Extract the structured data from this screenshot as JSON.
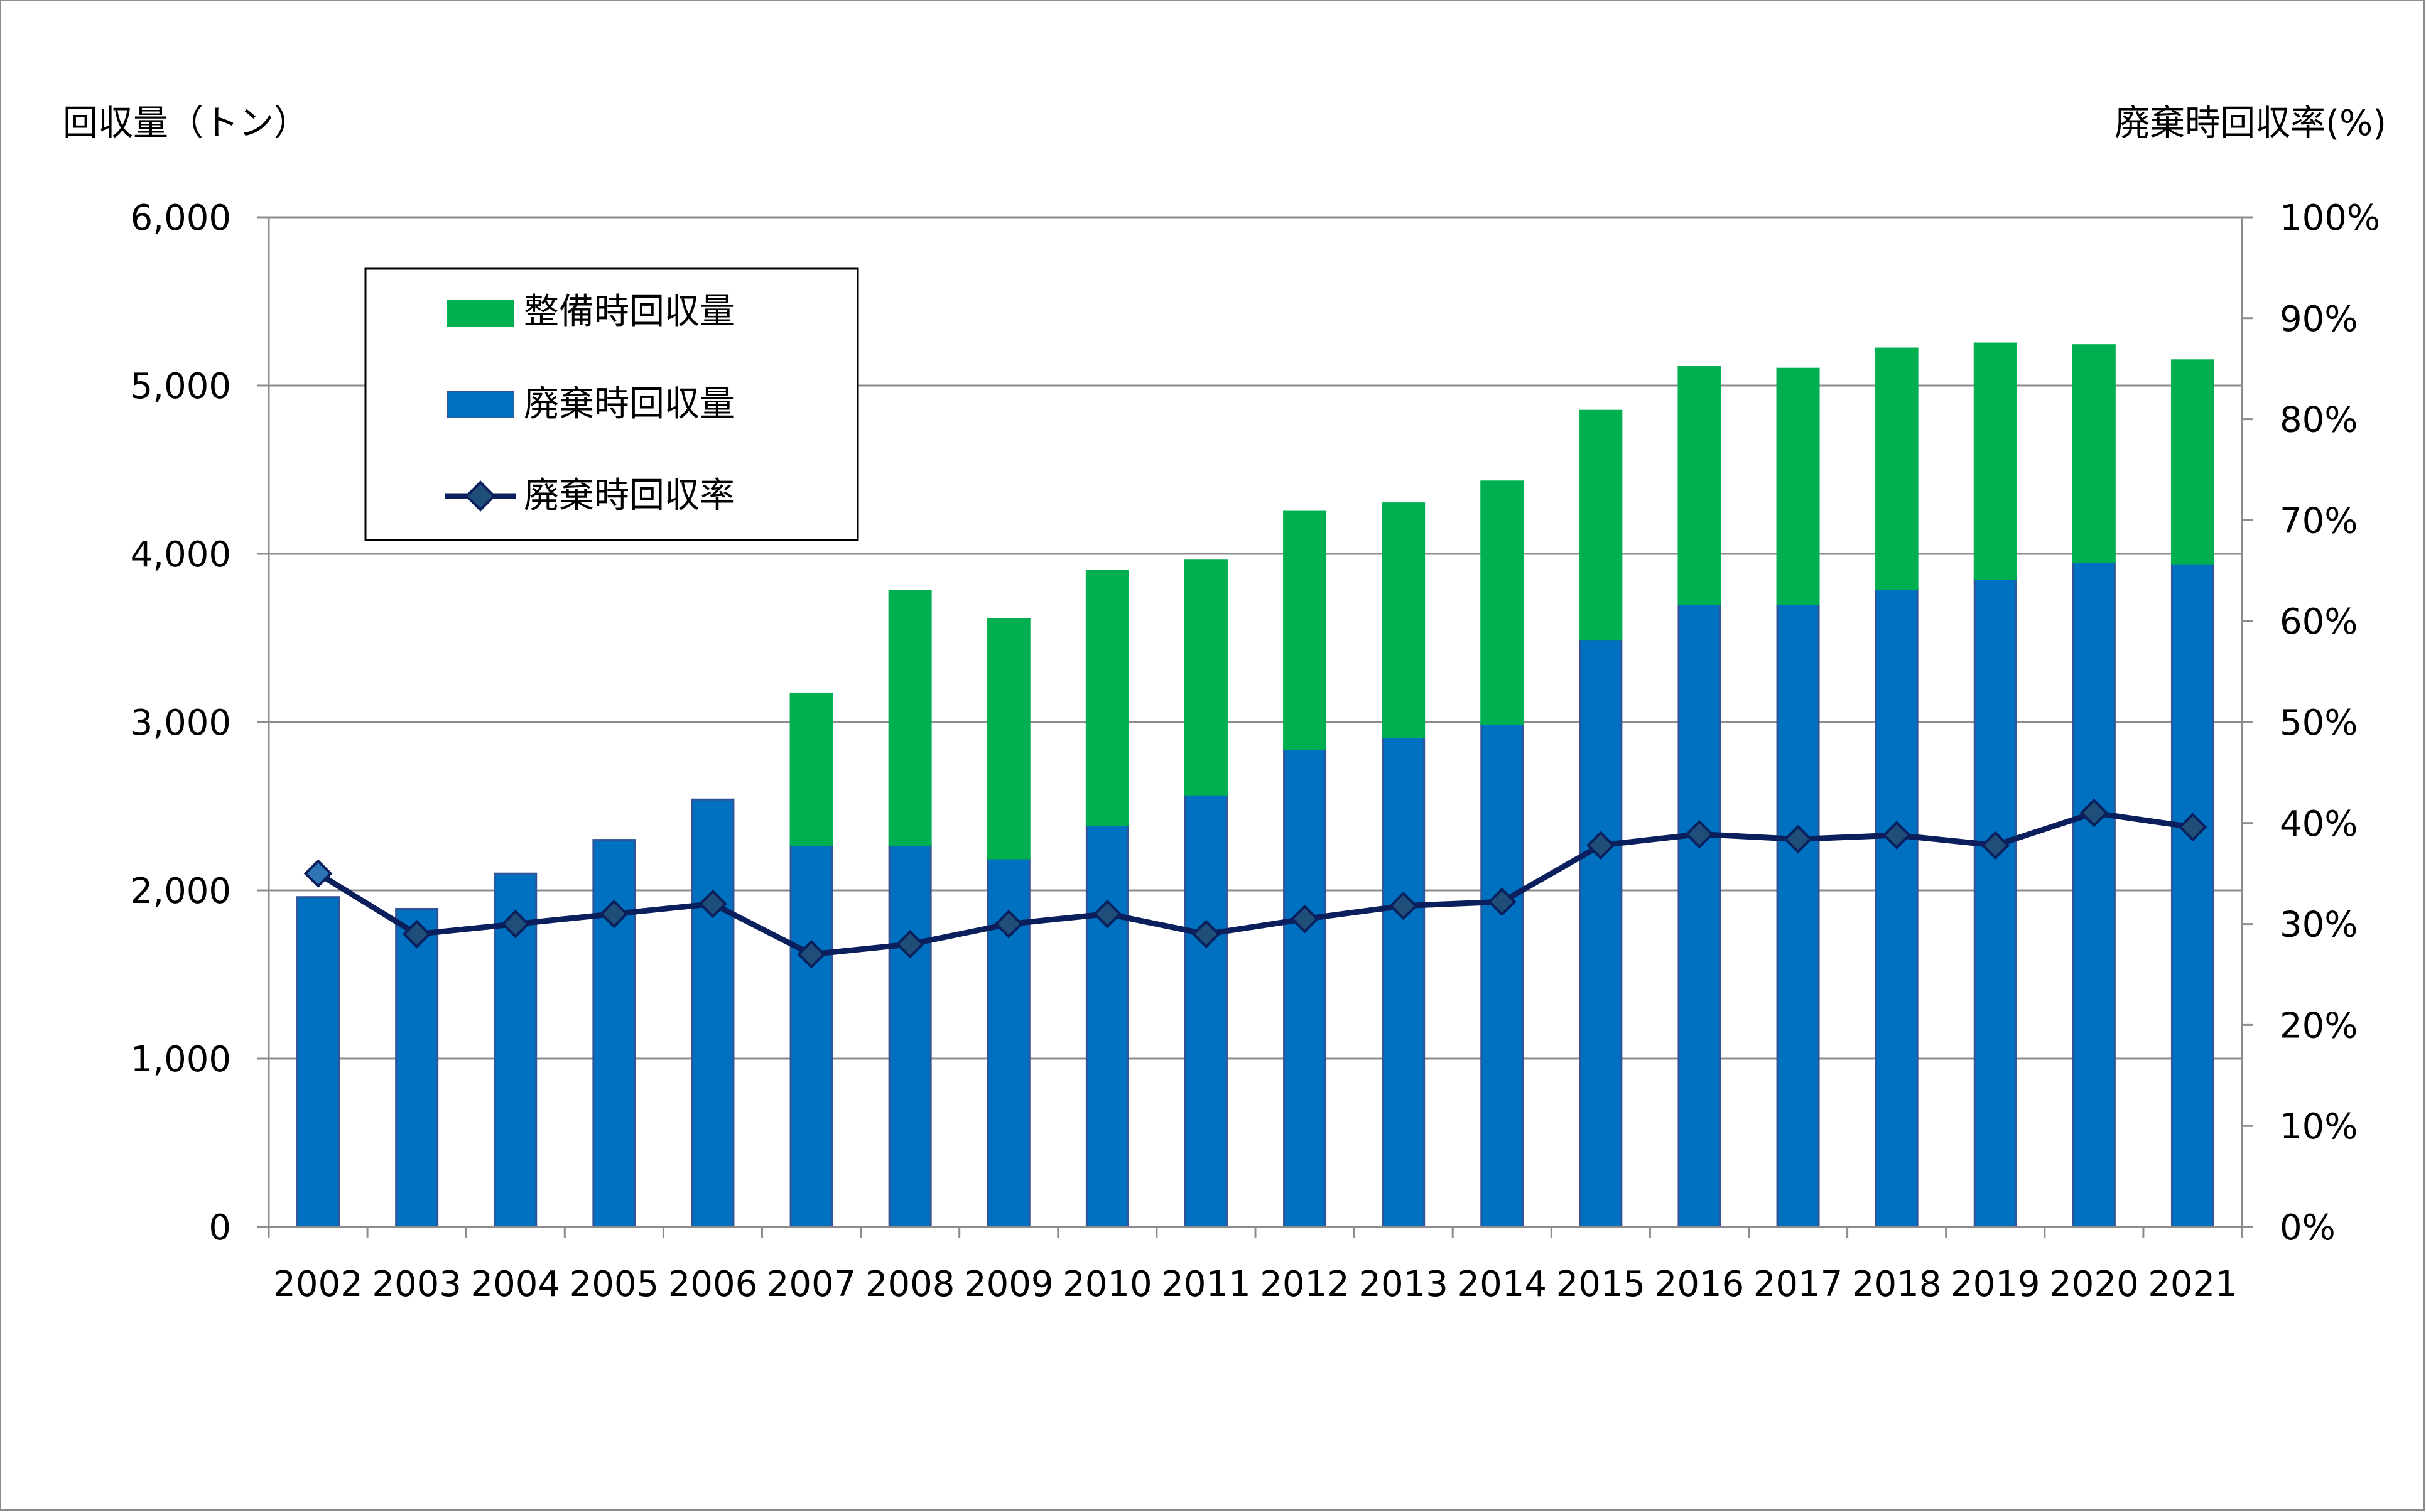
{
  "chart_data": {
    "type": "bar",
    "stacked": true,
    "categories": [
      "2002",
      "2003",
      "2004",
      "2005",
      "2006",
      "2007",
      "2008",
      "2009",
      "2010",
      "2011",
      "2012",
      "2013",
      "2014",
      "2015",
      "2016",
      "2017",
      "2018",
      "2019",
      "2020",
      "2021"
    ],
    "series": [
      {
        "name": "廃棄時回収量",
        "type": "bar",
        "axis": "left",
        "color": "#0070c0",
        "values": [
          1960,
          1890,
          2100,
          2300,
          2540,
          2270,
          2270,
          2190,
          2390,
          2570,
          2840,
          2910,
          2990,
          3490,
          3700,
          3700,
          3790,
          3850,
          3950,
          3940
        ]
      },
      {
        "name": "整備時回収量",
        "type": "bar",
        "axis": "left",
        "color": "#00b050",
        "values": [
          0,
          0,
          0,
          0,
          0,
          900,
          1510,
          1420,
          1510,
          1390,
          1410,
          1390,
          1440,
          1360,
          1410,
          1400,
          1430,
          1400,
          1290,
          1210
        ]
      },
      {
        "name": "廃棄時回収率",
        "type": "line",
        "axis": "right",
        "color": "#0b1f5c",
        "values": [
          35,
          29,
          30,
          31,
          32,
          27,
          28,
          30,
          31,
          29,
          30.5,
          31.8,
          32.2,
          37.8,
          38.9,
          38.4,
          38.8,
          37.8,
          41,
          39.6
        ]
      }
    ],
    "y_left": {
      "label": "回収量（トン）",
      "range": [
        0,
        6000
      ],
      "ticks": [
        "0",
        "1,000",
        "2,000",
        "3,000",
        "4,000",
        "5,000",
        "6,000"
      ]
    },
    "y_right": {
      "label": "廃棄時回収率(%)",
      "range": [
        0,
        100
      ],
      "ticks": [
        "0%",
        "10%",
        "20%",
        "30%",
        "40%",
        "50%",
        "60%",
        "70%",
        "80%",
        "90%",
        "100%"
      ]
    },
    "legend": {
      "position": "top-left",
      "items": [
        {
          "label": "整備時回収量",
          "color": "#00b050",
          "marker": "rect"
        },
        {
          "label": "廃棄時回収量",
          "color": "#0070c0",
          "marker": "rect"
        },
        {
          "label": "廃棄時回収率",
          "color": "#0b1f5c",
          "marker": "line-diamond"
        }
      ]
    },
    "grid": true
  }
}
